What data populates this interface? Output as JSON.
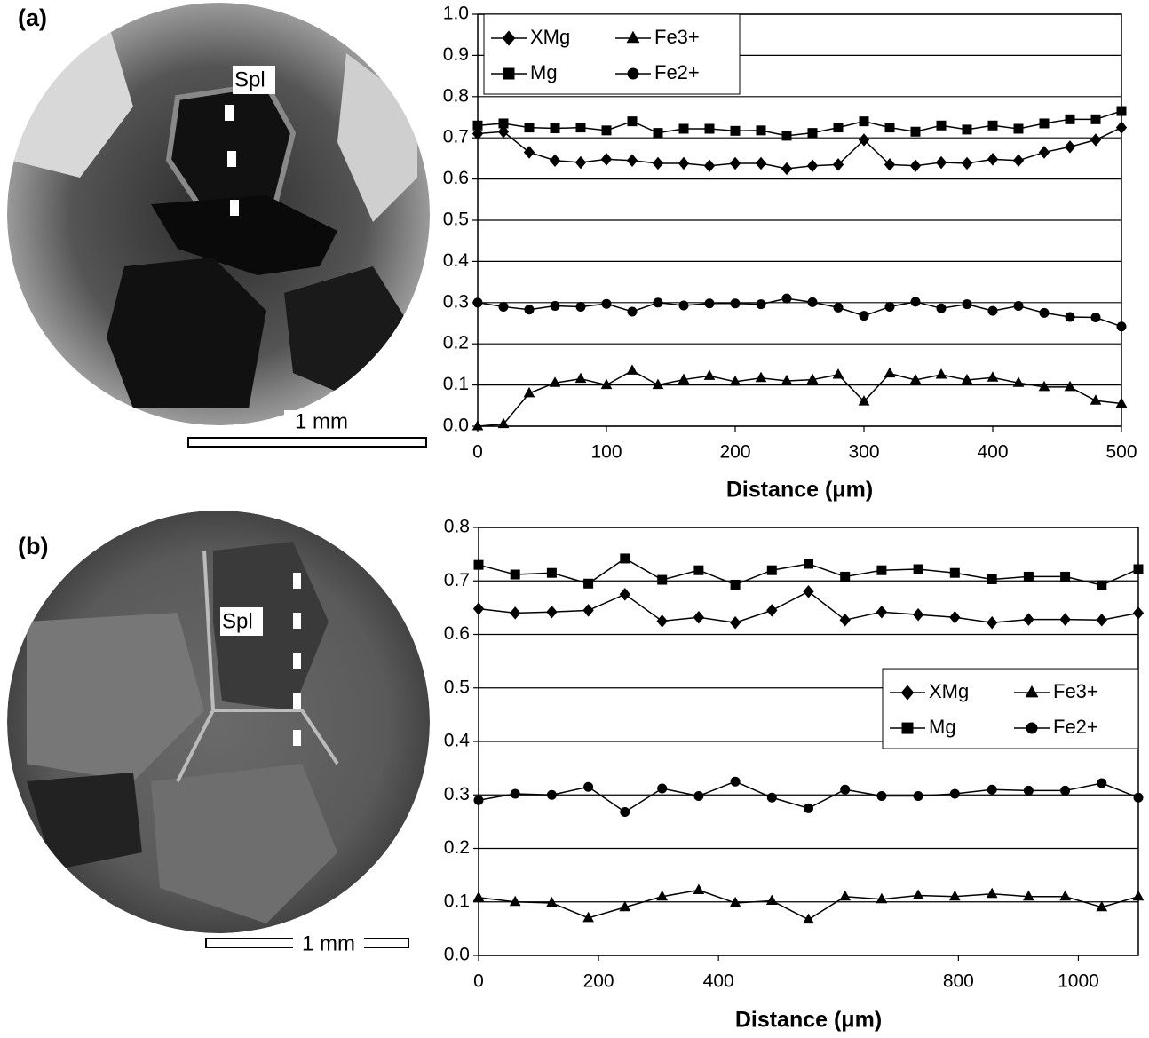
{
  "chart_data": [
    {
      "type": "line",
      "panel_label": "(a)",
      "image_labels": [
        "Spl",
        "1 mm"
      ],
      "x_label": "Distance (μm)",
      "x": [
        0,
        20,
        40,
        60,
        80,
        100,
        120,
        140,
        160,
        180,
        200,
        220,
        240,
        260,
        280,
        300,
        320,
        340,
        360,
        380,
        400,
        420,
        440,
        460,
        480,
        500
      ],
      "series": [
        {
          "name": "XMg",
          "marker": "diamond",
          "color": "#000000",
          "values": [
            0.71,
            0.715,
            0.665,
            0.645,
            0.64,
            0.648,
            0.645,
            0.638,
            0.638,
            0.632,
            0.638,
            0.638,
            0.625,
            0.632,
            0.635,
            0.695,
            0.635,
            0.632,
            0.64,
            0.638,
            0.648,
            0.645,
            0.665,
            0.678,
            0.695,
            0.725
          ]
        },
        {
          "name": "Fe3+",
          "marker": "triangle",
          "color": "#000000",
          "values": [
            0.0,
            0.005,
            0.08,
            0.105,
            0.115,
            0.1,
            0.135,
            0.1,
            0.113,
            0.122,
            0.108,
            0.117,
            0.11,
            0.113,
            0.125,
            0.06,
            0.128,
            0.112,
            0.125,
            0.112,
            0.118,
            0.105,
            0.095,
            0.095,
            0.062,
            0.055
          ]
        },
        {
          "name": "Mg",
          "marker": "square",
          "color": "#000000",
          "values": [
            0.73,
            0.735,
            0.725,
            0.723,
            0.725,
            0.718,
            0.74,
            0.712,
            0.722,
            0.722,
            0.717,
            0.718,
            0.705,
            0.712,
            0.725,
            0.74,
            0.725,
            0.715,
            0.73,
            0.72,
            0.73,
            0.722,
            0.735,
            0.745,
            0.745,
            0.765
          ]
        },
        {
          "name": "Fe2+",
          "marker": "circle",
          "color": "#000000",
          "values": [
            0.3,
            0.29,
            0.283,
            0.292,
            0.29,
            0.297,
            0.278,
            0.3,
            0.293,
            0.298,
            0.298,
            0.296,
            0.31,
            0.301,
            0.288,
            0.268,
            0.29,
            0.302,
            0.286,
            0.296,
            0.28,
            0.292,
            0.275,
            0.265,
            0.264,
            0.242
          ]
        }
      ],
      "xlim": [
        0,
        500
      ],
      "xticks": [
        0,
        100,
        200,
        300,
        400,
        500
      ],
      "ylim": [
        0,
        1
      ],
      "yticks": [
        {
          "value": 0,
          "label": "0.0"
        },
        0.1,
        0.2,
        0.3,
        0.4,
        0.5,
        0.6,
        0.7,
        0.8,
        0.9,
        {
          "value": 1,
          "label": "1.0"
        }
      ],
      "grid": true,
      "legend": "top-left"
    },
    {
      "type": "line",
      "panel_label": "(b)",
      "image_labels": [
        "Spl",
        "1 mm"
      ],
      "x_label": "Distance (μm)",
      "x": [
        0,
        61,
        122,
        183,
        244,
        306,
        367,
        428,
        489,
        550,
        611,
        672,
        733,
        794,
        856,
        917,
        978,
        1039,
        1100
      ],
      "series": [
        {
          "name": "XMg",
          "marker": "diamond",
          "color": "#000000",
          "values": [
            0.648,
            0.64,
            0.642,
            0.645,
            0.675,
            0.625,
            0.632,
            0.622,
            0.645,
            0.68,
            0.627,
            0.642,
            0.637,
            0.632,
            0.622,
            0.628,
            0.628,
            0.627,
            0.64
          ]
        },
        {
          "name": "Fe3+",
          "marker": "triangle",
          "color": "#000000",
          "values": [
            0.108,
            0.1,
            0.098,
            0.07,
            0.09,
            0.11,
            0.122,
            0.098,
            0.102,
            0.067,
            0.11,
            0.105,
            0.112,
            0.11,
            0.115,
            0.11,
            0.11,
            0.09,
            0.11
          ]
        },
        {
          "name": "Mg",
          "marker": "square",
          "color": "#000000",
          "values": [
            0.73,
            0.712,
            0.715,
            0.695,
            0.742,
            0.702,
            0.72,
            0.693,
            0.72,
            0.732,
            0.708,
            0.72,
            0.722,
            0.715,
            0.703,
            0.708,
            0.708,
            0.692,
            0.722
          ]
        },
        {
          "name": "Fe2+",
          "marker": "circle",
          "color": "#000000",
          "values": [
            0.29,
            0.302,
            0.3,
            0.315,
            0.268,
            0.312,
            0.298,
            0.325,
            0.295,
            0.275,
            0.31,
            0.298,
            0.298,
            0.302,
            0.31,
            0.308,
            0.308,
            0.322,
            0.295
          ]
        }
      ],
      "xlim": [
        0,
        1100
      ],
      "xticks": [
        0,
        200,
        400,
        800,
        1000
      ],
      "ylim": [
        0,
        0.8
      ],
      "yticks": [
        {
          "value": 0,
          "label": "0.0"
        },
        0.1,
        0.2,
        0.3,
        0.4,
        0.5,
        0.6,
        0.7,
        0.8
      ],
      "grid": true,
      "legend": "right"
    }
  ]
}
